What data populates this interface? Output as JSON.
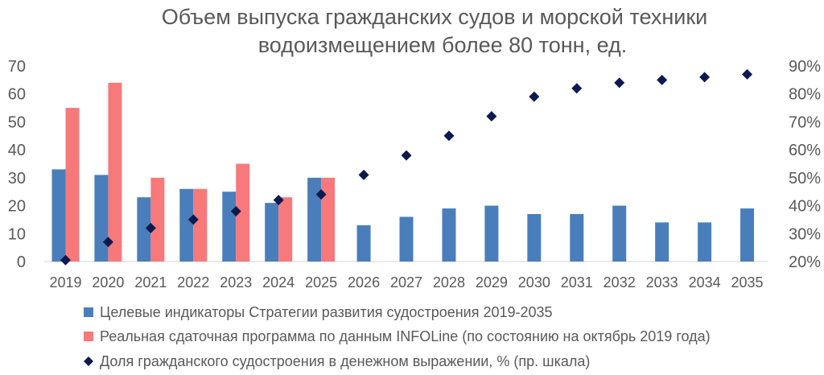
{
  "chart_data": {
    "type": "bar",
    "title": [
      "Объем выпуска гражданских судов и морской техники",
      "водоизмещением более 80 тонн, ед."
    ],
    "categories": [
      "2019",
      "2020",
      "2021",
      "2022",
      "2023",
      "2024",
      "2025",
      "2026",
      "2027",
      "2028",
      "2029",
      "2030",
      "2031",
      "2032",
      "2033",
      "2034",
      "2035"
    ],
    "y_left": {
      "min": 0,
      "max": 70,
      "step": 10,
      "ticks": [
        "0",
        "10",
        "20",
        "30",
        "40",
        "50",
        "60",
        "70"
      ]
    },
    "y_right": {
      "min": 20,
      "max": 90,
      "step": 10,
      "ticks": [
        "20%",
        "30%",
        "40%",
        "50%",
        "60%",
        "70%",
        "80%",
        "90%"
      ]
    },
    "series": [
      {
        "name": "Целевые индикаторы Стратегии развития  судостроения 2019-2035",
        "kind": "bar",
        "axis": "left",
        "color": "#4a7ebb",
        "values": [
          33,
          31,
          23,
          26,
          25,
          21,
          30,
          13,
          16,
          19,
          20,
          17,
          17,
          20,
          14,
          14,
          19
        ]
      },
      {
        "name": "Реальная сдаточная программа по данным INFOLine (по состоянию на октябрь 2019 года)",
        "kind": "bar",
        "axis": "left",
        "color": "#f7797b",
        "values": [
          55,
          64,
          30,
          26,
          35,
          23,
          30,
          null,
          null,
          null,
          null,
          null,
          null,
          null,
          null,
          null,
          null
        ]
      },
      {
        "name": "Доля гражданского судостроения в денежном выражении, % (пр. шкала)",
        "kind": "scatter",
        "axis": "right",
        "color": "#0d1a4e",
        "values": [
          20.5,
          27,
          32,
          35,
          38,
          42,
          44,
          51,
          58,
          65,
          72,
          79,
          82,
          84,
          85,
          86,
          87
        ]
      }
    ]
  }
}
